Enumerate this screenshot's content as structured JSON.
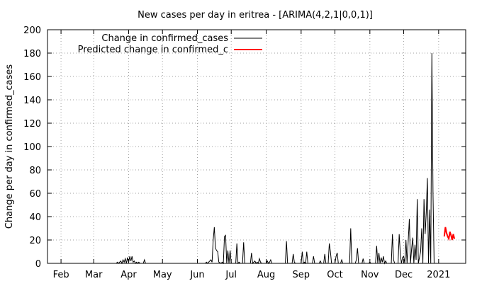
{
  "chart_data": {
    "type": "line",
    "title": "New cases per day in eritrea -  [ARIMA(4,2,1|0,0,1)]",
    "xlabel": "",
    "ylabel": "Change per day in confirmed_cases",
    "ylim": [
      0,
      200
    ],
    "yticks": [
      0,
      20,
      40,
      60,
      80,
      100,
      120,
      140,
      160,
      180,
      200
    ],
    "xlim": [
      "2020-01-20",
      "2021-01-25"
    ],
    "xtick_labels": [
      {
        "date": "2020-02-01",
        "label": "Feb"
      },
      {
        "date": "2020-03-01",
        "label": "Mar"
      },
      {
        "date": "2020-04-01",
        "label": "Apr"
      },
      {
        "date": "2020-05-01",
        "label": "May"
      },
      {
        "date": "2020-06-01",
        "label": "Jun"
      },
      {
        "date": "2020-07-01",
        "label": "Jul"
      },
      {
        "date": "2020-08-01",
        "label": "Aug"
      },
      {
        "date": "2020-09-01",
        "label": "Sep"
      },
      {
        "date": "2020-10-01",
        "label": "Oct"
      },
      {
        "date": "2020-11-01",
        "label": "Nov"
      },
      {
        "date": "2020-12-01",
        "label": "Dec"
      },
      {
        "date": "2021-01-01",
        "label": "2021"
      }
    ],
    "grid": true,
    "legend_position": "top-left",
    "series": [
      {
        "name": "Change in confirmed_cases",
        "color": "#000000",
        "points": [
          [
            "2020-03-21",
            0
          ],
          [
            "2020-03-22",
            1
          ],
          [
            "2020-03-23",
            0
          ],
          [
            "2020-03-25",
            2
          ],
          [
            "2020-03-26",
            0
          ],
          [
            "2020-03-27",
            3
          ],
          [
            "2020-03-28",
            1
          ],
          [
            "2020-03-29",
            4
          ],
          [
            "2020-03-30",
            0
          ],
          [
            "2020-03-31",
            5
          ],
          [
            "2020-04-01",
            1
          ],
          [
            "2020-04-02",
            6
          ],
          [
            "2020-04-03",
            2
          ],
          [
            "2020-04-04",
            6
          ],
          [
            "2020-04-05",
            1
          ],
          [
            "2020-04-06",
            2
          ],
          [
            "2020-04-07",
            0
          ],
          [
            "2020-04-08",
            1
          ],
          [
            "2020-04-09",
            0
          ],
          [
            "2020-04-10",
            1
          ],
          [
            "2020-04-11",
            0
          ],
          [
            "2020-04-14",
            0
          ],
          [
            "2020-04-15",
            3
          ],
          [
            "2020-04-16",
            0
          ],
          [
            "2020-06-08",
            0
          ],
          [
            "2020-06-09",
            1
          ],
          [
            "2020-06-10",
            0
          ],
          [
            "2020-06-13",
            3
          ],
          [
            "2020-06-14",
            1
          ],
          [
            "2020-06-15",
            20
          ],
          [
            "2020-06-16",
            31
          ],
          [
            "2020-06-17",
            13
          ],
          [
            "2020-06-18",
            11
          ],
          [
            "2020-06-19",
            10
          ],
          [
            "2020-06-20",
            1
          ],
          [
            "2020-06-22",
            0
          ],
          [
            "2020-06-23",
            1
          ],
          [
            "2020-06-24",
            0
          ],
          [
            "2020-06-25",
            23
          ],
          [
            "2020-06-26",
            24
          ],
          [
            "2020-06-27",
            0
          ],
          [
            "2020-06-28",
            11
          ],
          [
            "2020-06-29",
            0
          ],
          [
            "2020-06-30",
            11
          ],
          [
            "2020-07-01",
            0
          ],
          [
            "2020-07-05",
            0
          ],
          [
            "2020-07-06",
            17
          ],
          [
            "2020-07-07",
            0
          ],
          [
            "2020-07-08",
            1
          ],
          [
            "2020-07-09",
            0
          ],
          [
            "2020-07-11",
            0
          ],
          [
            "2020-07-12",
            18
          ],
          [
            "2020-07-13",
            0
          ],
          [
            "2020-07-18",
            0
          ],
          [
            "2020-07-19",
            9
          ],
          [
            "2020-07-20",
            0
          ],
          [
            "2020-07-22",
            2
          ],
          [
            "2020-07-23",
            0
          ],
          [
            "2020-07-24",
            1
          ],
          [
            "2020-07-25",
            0
          ],
          [
            "2020-07-26",
            4
          ],
          [
            "2020-07-27",
            1
          ],
          [
            "2020-07-28",
            0
          ],
          [
            "2020-08-01",
            0
          ],
          [
            "2020-08-02",
            2
          ],
          [
            "2020-08-03",
            0
          ],
          [
            "2020-08-04",
            1
          ],
          [
            "2020-08-05",
            3
          ],
          [
            "2020-08-06",
            0
          ],
          [
            "2020-08-18",
            0
          ],
          [
            "2020-08-19",
            19
          ],
          [
            "2020-08-20",
            0
          ],
          [
            "2020-08-24",
            0
          ],
          [
            "2020-08-25",
            8
          ],
          [
            "2020-08-26",
            1
          ],
          [
            "2020-08-27",
            0
          ],
          [
            "2020-09-01",
            0
          ],
          [
            "2020-09-02",
            10
          ],
          [
            "2020-09-03",
            0
          ],
          [
            "2020-09-04",
            1
          ],
          [
            "2020-09-05",
            0
          ],
          [
            "2020-09-06",
            10
          ],
          [
            "2020-09-07",
            0
          ],
          [
            "2020-09-11",
            0
          ],
          [
            "2020-09-12",
            6
          ],
          [
            "2020-09-13",
            0
          ],
          [
            "2020-09-17",
            0
          ],
          [
            "2020-09-18",
            2
          ],
          [
            "2020-09-19",
            0
          ],
          [
            "2020-09-21",
            0
          ],
          [
            "2020-09-22",
            8
          ],
          [
            "2020-09-23",
            0
          ],
          [
            "2020-09-25",
            0
          ],
          [
            "2020-09-26",
            17
          ],
          [
            "2020-09-27",
            10
          ],
          [
            "2020-09-28",
            0
          ],
          [
            "2020-10-01",
            0
          ],
          [
            "2020-10-02",
            6
          ],
          [
            "2020-10-03",
            9
          ],
          [
            "2020-10-04",
            0
          ],
          [
            "2020-10-06",
            0
          ],
          [
            "2020-10-07",
            3
          ],
          [
            "2020-10-08",
            0
          ],
          [
            "2020-10-14",
            0
          ],
          [
            "2020-10-15",
            30
          ],
          [
            "2020-10-16",
            0
          ],
          [
            "2020-10-19",
            0
          ],
          [
            "2020-10-20",
            3
          ],
          [
            "2020-10-21",
            13
          ],
          [
            "2020-10-22",
            0
          ],
          [
            "2020-10-25",
            0
          ],
          [
            "2020-10-26",
            4
          ],
          [
            "2020-10-27",
            0
          ],
          [
            "2020-10-31",
            0
          ],
          [
            "2020-11-01",
            1
          ],
          [
            "2020-11-02",
            0
          ],
          [
            "2020-11-06",
            0
          ],
          [
            "2020-11-07",
            15
          ],
          [
            "2020-11-08",
            0
          ],
          [
            "2020-11-09",
            9
          ],
          [
            "2020-11-10",
            0
          ],
          [
            "2020-11-11",
            5
          ],
          [
            "2020-11-12",
            1
          ],
          [
            "2020-11-13",
            6
          ],
          [
            "2020-11-14",
            0
          ],
          [
            "2020-11-15",
            2
          ],
          [
            "2020-11-16",
            0
          ],
          [
            "2020-11-20",
            0
          ],
          [
            "2020-11-21",
            25
          ],
          [
            "2020-11-22",
            3
          ],
          [
            "2020-11-23",
            0
          ],
          [
            "2020-11-26",
            0
          ],
          [
            "2020-11-27",
            25
          ],
          [
            "2020-11-28",
            8
          ],
          [
            "2020-11-29",
            0
          ],
          [
            "2020-11-30",
            5
          ],
          [
            "2020-12-01",
            6
          ],
          [
            "2020-12-02",
            0
          ],
          [
            "2020-12-03",
            20
          ],
          [
            "2020-12-04",
            0
          ],
          [
            "2020-12-06",
            38
          ],
          [
            "2020-12-07",
            0
          ],
          [
            "2020-12-08",
            12
          ],
          [
            "2020-12-09",
            22
          ],
          [
            "2020-12-10",
            0
          ],
          [
            "2020-12-11",
            16
          ],
          [
            "2020-12-12",
            3
          ],
          [
            "2020-12-13",
            55
          ],
          [
            "2020-12-14",
            0
          ],
          [
            "2020-12-16",
            10
          ],
          [
            "2020-12-17",
            30
          ],
          [
            "2020-12-18",
            0
          ],
          [
            "2020-12-19",
            55
          ],
          [
            "2020-12-20",
            25
          ],
          [
            "2020-12-21",
            43
          ],
          [
            "2020-12-22",
            73
          ],
          [
            "2020-12-23",
            0
          ],
          [
            "2020-12-24",
            46
          ],
          [
            "2020-12-25",
            0
          ],
          [
            "2020-12-26",
            180
          ],
          [
            "2020-12-27",
            60
          ],
          [
            "2020-12-28",
            0
          ]
        ]
      },
      {
        "name": "Predicted change in confirmed_c",
        "color": "#ff0000",
        "points": [
          [
            "2021-01-06",
            23
          ],
          [
            "2021-01-07",
            31
          ],
          [
            "2021-01-08",
            26
          ],
          [
            "2021-01-09",
            23
          ],
          [
            "2021-01-10",
            21
          ],
          [
            "2021-01-11",
            27
          ],
          [
            "2021-01-12",
            24
          ],
          [
            "2021-01-13",
            20
          ],
          [
            "2021-01-14",
            25
          ],
          [
            "2021-01-15",
            21
          ]
        ]
      }
    ]
  }
}
